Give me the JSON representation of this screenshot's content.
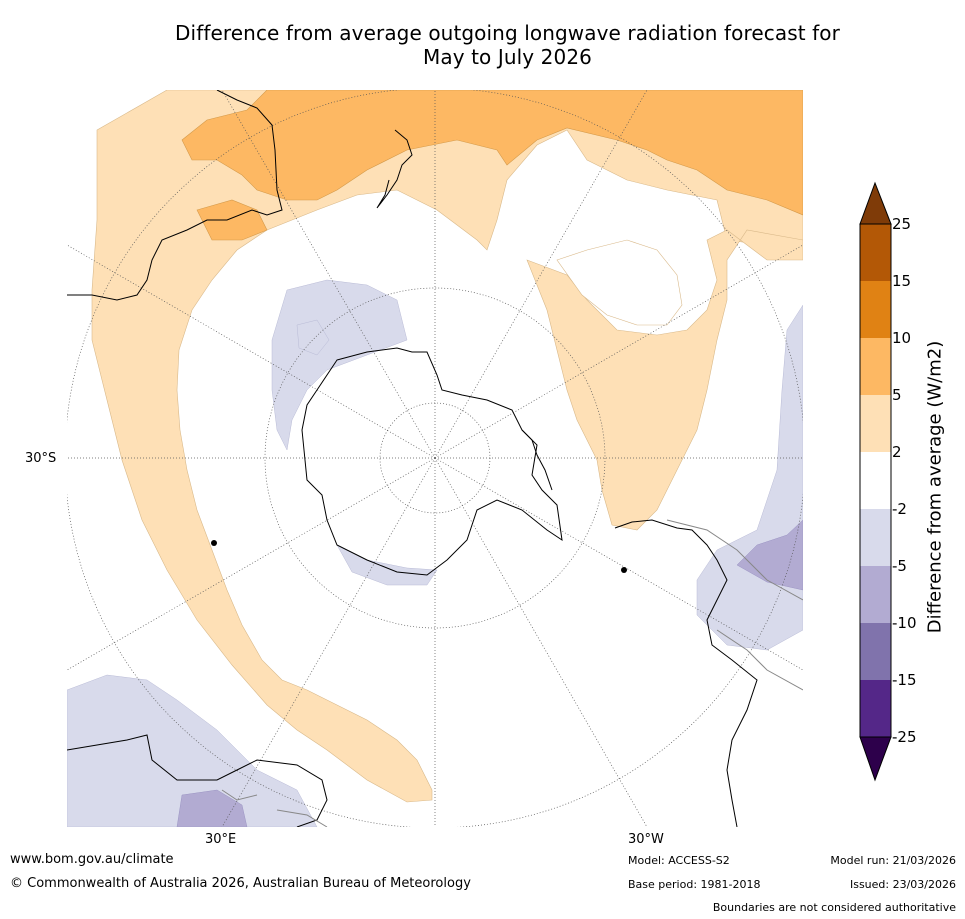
{
  "title_line1": "Difference from average outgoing longwave radiation forecast for",
  "title_line2": "May to July 2026",
  "graticule_labels": {
    "lat_30s": "30°S",
    "lon_30e": "30°E",
    "lon_30w": "30°W"
  },
  "colorbar": {
    "label": "Difference from average (W/m2)",
    "ticks": [
      "25",
      "15",
      "10",
      "5",
      "2",
      "-2",
      "-5",
      "-10",
      "-15",
      "-25"
    ],
    "colors": [
      "#7f3b08",
      "#b35806",
      "#e08214",
      "#fdb863",
      "#fee0b6",
      "#ffffff",
      "#d8daeb",
      "#b2abd2",
      "#8073ac",
      "#542788",
      "#2d004b"
    ]
  },
  "footer": {
    "website": "www.bom.gov.au/climate",
    "copyright": "© Commonwealth of Australia 2026, Australian Bureau of Meteorology",
    "model": "Model: ACCESS-S2",
    "base_period": "Base period: 1981-2018",
    "model_run": "Model run: 21/03/2026",
    "issued": "Issued: 23/03/2026",
    "disclaimer": "Boundaries are not considered authoritative"
  },
  "regions": {
    "tan_2_5": "2 to 5",
    "orange_5_10": "5 to 10",
    "lavender_neg2_neg5": "-2 to -5",
    "purple_neg5_neg10": "-5 to -10"
  }
}
